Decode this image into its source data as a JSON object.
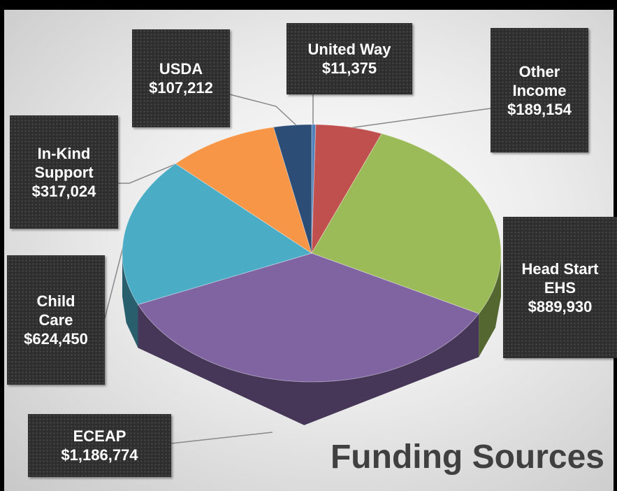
{
  "chart_data": {
    "type": "pie",
    "title": "Funding Sources",
    "categories": [
      "United Way",
      "Other Income",
      "Head Start EHS",
      "ECEAP",
      "Child Care",
      "In-Kind Support",
      "USDA"
    ],
    "values": [
      11375,
      189154,
      889930,
      1186774,
      624450,
      317024,
      107212
    ],
    "value_labels": [
      "$11,375",
      "$189,154",
      "$889,930",
      "$1,186,774",
      "$624,450",
      "$317,024",
      "$107,212"
    ],
    "colors": [
      "#4f81bd",
      "#c0504d",
      "#9bbb59",
      "#8064a2",
      "#4bacc6",
      "#f79646",
      "#2c4d75"
    ]
  }
}
